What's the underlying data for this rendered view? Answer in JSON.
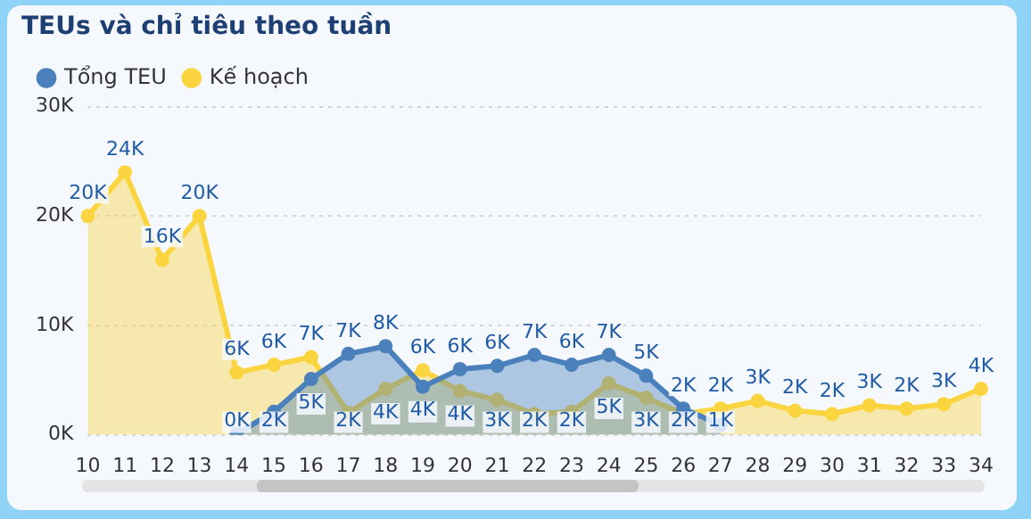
{
  "chart_data": {
    "type": "area",
    "title": "TEUs và chỉ tiêu theo tuần",
    "categories": [
      "10",
      "11",
      "12",
      "13",
      "14",
      "15",
      "16",
      "17",
      "18",
      "19",
      "20",
      "21",
      "22",
      "23",
      "24",
      "25",
      "26",
      "27",
      "28",
      "29",
      "30",
      "31",
      "32",
      "33",
      "34"
    ],
    "series": [
      {
        "name": "Tổng TEU",
        "color": "#4a80bb",
        "values": [
          null,
          null,
          null,
          null,
          100,
          2100,
          5100,
          7400,
          8100,
          4400,
          6000,
          6300,
          7300,
          6400,
          7300,
          5400,
          2400,
          900,
          null,
          null,
          null,
          null,
          null,
          null,
          null
        ],
        "value_labels": [
          null,
          null,
          null,
          null,
          "0K",
          "2K",
          "5K",
          "7K",
          "8K",
          "4K",
          "6K",
          "6K",
          "7K",
          "6K",
          "7K",
          "5K",
          "2K",
          "1K",
          null,
          null,
          null,
          null,
          null,
          null,
          null
        ]
      },
      {
        "name": "Kế hoạch",
        "color": "#fad53f",
        "values": [
          20000,
          24000,
          16000,
          20000,
          5700,
          6400,
          7100,
          2000,
          4200,
          5900,
          4000,
          3200,
          1900,
          2100,
          4700,
          3400,
          1900,
          2400,
          3100,
          2200,
          1900,
          2700,
          2400,
          2800,
          4200
        ],
        "value_labels": [
          "20K",
          "24K",
          "16K",
          "20K",
          "6K",
          "6K",
          "7K",
          "2K",
          "4K",
          "6K",
          "4K",
          "3K",
          "2K",
          "2K",
          "5K",
          "3K",
          "2K",
          "2K",
          "3K",
          "2K",
          "2K",
          "3K",
          "2K",
          "3K",
          "4K"
        ]
      }
    ],
    "ylim": [
      0,
      30000
    ],
    "yticks": [
      {
        "value": 0,
        "label": "0K"
      },
      {
        "value": 10000,
        "label": "10K"
      },
      {
        "value": 20000,
        "label": "20K"
      },
      {
        "value": 30000,
        "label": "30K"
      }
    ],
    "grid": "y",
    "legend": "top left",
    "marker": "circle",
    "line_style": "solid"
  }
}
